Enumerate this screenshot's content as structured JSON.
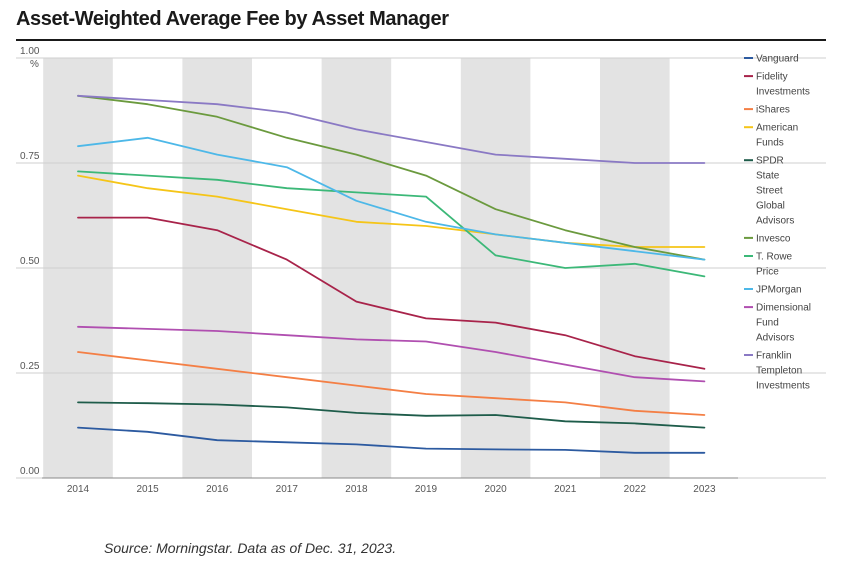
{
  "title": "Asset-Weighted Average Fee by Asset Manager",
  "source": "Source: Morningstar. Data as of Dec. 31, 2023.",
  "chart_data": {
    "type": "line",
    "title": "Asset-Weighted Average Fee by Asset Manager",
    "xlabel": "",
    "ylabel": "%",
    "ylim": [
      0,
      1.0
    ],
    "yticks": [
      "0.00",
      "0.25",
      "0.50",
      "0.75",
      "1.00"
    ],
    "y_unit": "%",
    "x": [
      "2014",
      "2015",
      "2016",
      "2017",
      "2018",
      "2019",
      "2020",
      "2021",
      "2022",
      "2023"
    ],
    "grid": "horizontal gridlines with alternating grey year bands",
    "legend_position": "right",
    "series": [
      {
        "name": "Vanguard",
        "color": "#2c5aa0",
        "values": [
          0.12,
          0.11,
          0.09,
          0.085,
          0.08,
          0.07,
          0.068,
          0.067,
          0.06,
          0.06
        ]
      },
      {
        "name": "Fidelity Investments",
        "color": "#a8234a",
        "values": [
          0.62,
          0.62,
          0.59,
          0.52,
          0.42,
          0.38,
          0.37,
          0.34,
          0.29,
          0.26
        ]
      },
      {
        "name": "iShares",
        "color": "#f47f45",
        "values": [
          0.3,
          0.28,
          0.26,
          0.24,
          0.22,
          0.2,
          0.19,
          0.18,
          0.16,
          0.15
        ]
      },
      {
        "name": "American Funds",
        "color": "#f5c518",
        "values": [
          0.72,
          0.69,
          0.67,
          0.64,
          0.61,
          0.6,
          0.58,
          0.56,
          0.55,
          0.55
        ]
      },
      {
        "name": "SPDR State Street Global Advisors",
        "color": "#1e5c4a",
        "values": [
          0.18,
          0.178,
          0.175,
          0.168,
          0.155,
          0.148,
          0.15,
          0.135,
          0.13,
          0.12
        ]
      },
      {
        "name": "Invesco",
        "color": "#6b9a3e",
        "values": [
          0.91,
          0.89,
          0.86,
          0.81,
          0.77,
          0.72,
          0.64,
          0.59,
          0.55,
          0.52
        ]
      },
      {
        "name": "T. Rowe Price",
        "color": "#3cb878",
        "values": [
          0.73,
          0.72,
          0.71,
          0.69,
          0.68,
          0.67,
          0.53,
          0.5,
          0.51,
          0.48
        ]
      },
      {
        "name": "JPMorgan",
        "color": "#4db8e8",
        "values": [
          0.79,
          0.81,
          0.77,
          0.74,
          0.66,
          0.61,
          0.58,
          0.56,
          0.54,
          0.52
        ]
      },
      {
        "name": "Dimensional Fund Advisors",
        "color": "#b04fb0",
        "values": [
          0.36,
          0.355,
          0.35,
          0.34,
          0.33,
          0.325,
          0.3,
          0.27,
          0.24,
          0.23
        ]
      },
      {
        "name": "Franklin Templeton Investments",
        "color": "#8a79c4",
        "values": [
          0.91,
          0.9,
          0.89,
          0.87,
          0.83,
          0.8,
          0.77,
          0.76,
          0.75,
          0.75
        ]
      }
    ],
    "legend_lines": [
      [
        "Vanguard"
      ],
      [
        "Fidelity",
        "Investments"
      ],
      [
        "iShares"
      ],
      [
        "American",
        "Funds"
      ],
      [
        "SPDR",
        "State",
        "Street",
        "Global",
        "Advisors"
      ],
      [
        "Invesco"
      ],
      [
        "T. Rowe",
        "Price"
      ],
      [
        "JPMorgan"
      ],
      [
        "Dimensional",
        "Fund",
        "Advisors"
      ],
      [
        "Franklin",
        "Templeton",
        "Investments"
      ]
    ],
    "band_color": "#e3e3e3",
    "grid_color": "#cfcfcf"
  }
}
